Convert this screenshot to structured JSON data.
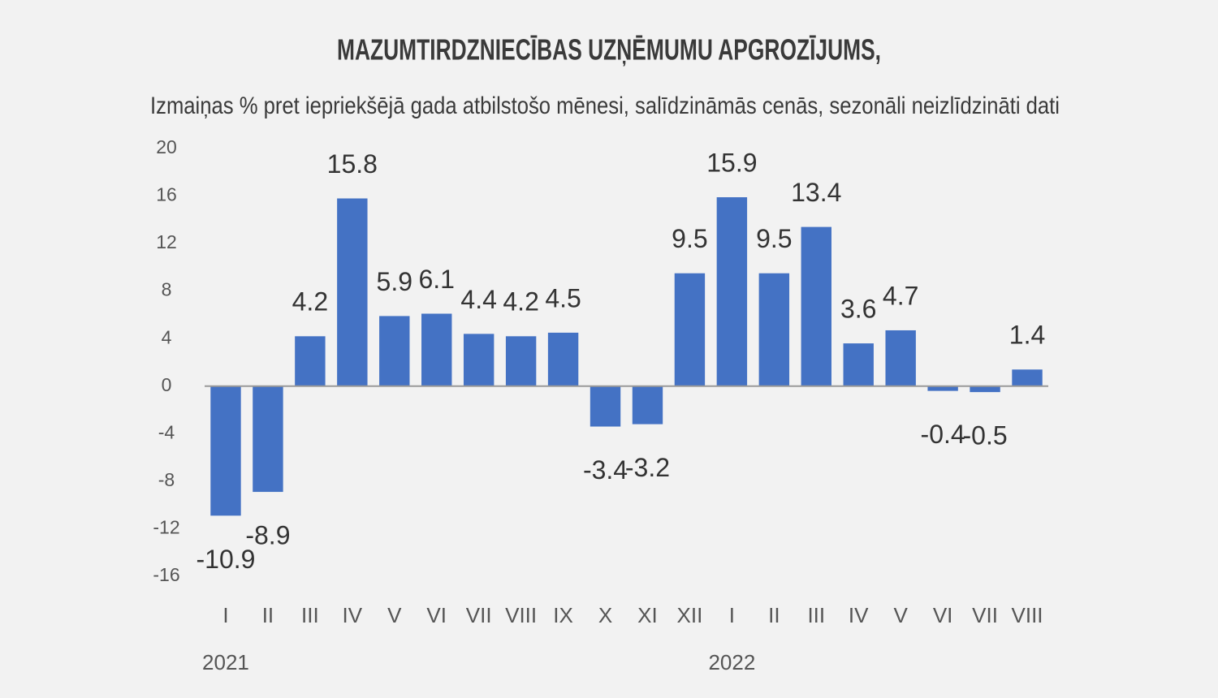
{
  "chart_data": {
    "type": "bar",
    "title": "MAZUMTIRDZNIECĪBAS UZŅĒMUMU APGROZĪJUMS,",
    "subtitle": "Izmaiņas % pret iepriekšējā gada atbilstošo mēnesi, salīdzināmās cenās, sezonāli neizlīdzināti dati",
    "categories": [
      "I",
      "II",
      "III",
      "IV",
      "V",
      "VI",
      "VII",
      "VIII",
      "IX",
      "X",
      "XI",
      "XII",
      "I",
      "II",
      "III",
      "IV",
      "V",
      "VI",
      "VII",
      "VIII"
    ],
    "year_labels": [
      "2021",
      null,
      null,
      null,
      null,
      null,
      null,
      null,
      null,
      null,
      null,
      null,
      "2022",
      null,
      null,
      null,
      null,
      null,
      null,
      null
    ],
    "values": [
      -10.9,
      -8.9,
      4.2,
      15.8,
      5.9,
      6.1,
      4.4,
      4.2,
      4.5,
      -3.4,
      -3.2,
      9.5,
      15.9,
      9.5,
      13.4,
      3.6,
      4.7,
      -0.4,
      -0.5,
      1.4
    ],
    "color": "#4472c4",
    "ylim": [
      -16,
      20
    ],
    "yticks": [
      -16,
      -12,
      -8,
      -4,
      0,
      4,
      8,
      12,
      16,
      20
    ],
    "grid": false
  }
}
